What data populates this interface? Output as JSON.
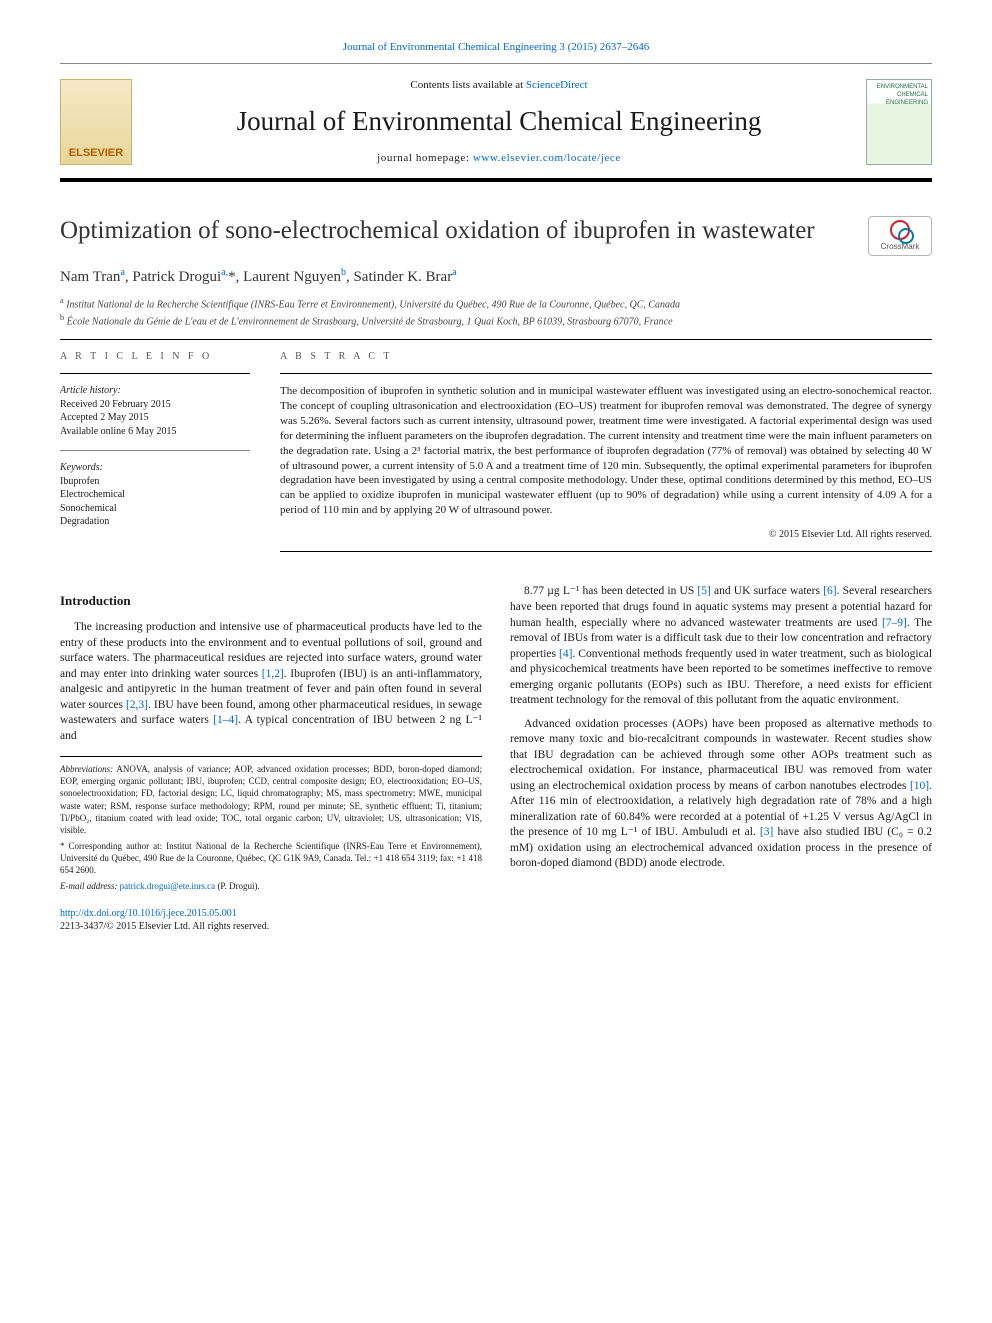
{
  "header": {
    "top_citation": "Journal of Environmental Chemical Engineering 3 (2015) 2637–2646",
    "contents_prefix": "Contents lists available at ",
    "contents_link": "ScienceDirect",
    "journal_name": "Journal of Environmental Chemical Engineering",
    "homepage_label": "journal homepage: ",
    "homepage_url": "www.elsevier.com/locate/jece",
    "elsevier_label": "ELSEVIER",
    "cover_text": "ENVIRONMENTAL\nCHEMICAL\nENGINEERING"
  },
  "crossmark_label": "CrossMark",
  "title": "Optimization of sono-electrochemical oxidation of ibuprofen in wastewater",
  "authors_html": "Nam Tran<sup>a</sup>, Patrick Drogui<sup>a,</sup>*, Laurent Nguyen<sup>b</sup>, Satinder K. Brar<sup>a</sup>",
  "affiliations": {
    "a": "Institut National de la Recherche Scientifique (INRS-Eau Terre et Environnement), Université du Québec, 490 Rue de la Couronne, Québec, QC, Canada",
    "b": "École Nationale du Génie de L'eau et de L'environnement de Strasbourg, Université de Strasbourg, 1 Quai Koch, BP 61039, Strasbourg 67070, France"
  },
  "article_info": {
    "heading": "A R T I C L E  I N F O",
    "history_label": "Article history:",
    "history": [
      "Received 20 February 2015",
      "Accepted 2 May 2015",
      "Available online 6 May 2015"
    ],
    "keywords_label": "Keywords:",
    "keywords": [
      "Ibuprofen",
      "Electrochemical",
      "Sonochemical",
      "Degradation"
    ]
  },
  "abstract": {
    "heading": "A B S T R A C T",
    "text": "The decomposition of ibuprofen in synthetic solution and in municipal wastewater effluent was investigated using an electro-sonochemical reactor. The concept of coupling ultrasonication and electrooxidation (EO–US) treatment for ibuprofen removal was demonstrated. The degree of synergy was 5.26%. Several factors such as current intensity, ultrasound power, treatment time were investigated. A factorial experimental design was used for determining the influent parameters on the ibuprofen degradation. The current intensity and treatment time were the main influent parameters on the degradation rate. Using a 2³ factorial matrix, the best performance of ibuprofen degradation (77% of removal) was obtained by selecting 40 W of ultrasound power, a current intensity of 5.0 A and a treatment time of 120 min. Subsequently, the optimal experimental parameters for ibuprofen degradation have been investigated by using a central composite methodology. Under these, optimal conditions determined by this method, EO–US can be applied to oxidize ibuprofen in municipal wastewater effluent (up to 90% of degradation) while using a current intensity of 4.09 A for a period of 110 min and by applying 20 W of ultrasound power.",
    "copyright": "© 2015 Elsevier Ltd. All rights reserved."
  },
  "body": {
    "intro_heading": "Introduction",
    "p1": "The increasing production and intensive use of pharmaceutical products have led to the entry of these products into the environment and to eventual pollutions of soil, ground and surface waters. The pharmaceutical residues are rejected into surface waters, ground water and may enter into drinking water sources [1,2]. Ibuprofen (IBU) is an anti-inflammatory, analgesic and antipyretic in the human treatment of fever and pain often found in several water sources [2,3]. IBU have been found, among other pharmaceutical residues, in sewage wastewaters and surface waters [1–4]. A typical concentration of IBU between 2 ng L⁻¹ and",
    "p2": "8.77 µg L⁻¹ has been detected in US [5] and UK surface waters [6]. Several researchers have been reported that drugs found in aquatic systems may present a potential hazard for human health, especially where no advanced wastewater treatments are used [7–9]. The removal of IBUs from water is a difficult task due to their low concentration and refractory properties [4]. Conventional methods frequently used in water treatment, such as biological and physicochemical treatments have been reported to be sometimes ineffective to remove emerging organic pollutants (EOPs) such as IBU. Therefore, a need exists for efficient treatment technology for the removal of this pollutant from the aquatic environment.",
    "p3": "Advanced oxidation processes (AOPs) have been proposed as alternative methods to remove many toxic and bio-recalcitrant compounds in wastewater. Recent studies show that IBU degradation can be achieved through some other AOPs treatment such as electrochemical oxidation. For instance, pharmaceutical IBU was removed from water using an electrochemical oxidation process by means of carbon nanotubes electrodes [10]. After 116 min of electrooxidation, a relatively high degradation rate of 78% and a high mineralization rate of 60.84% were recorded at a potential of +1.25 V versus Ag/AgCl in the presence of 10 mg L⁻¹ of IBU. Ambuludi et al. [3] have also studied IBU (C₀ = 0.2 mM) oxidation using an electrochemical advanced oxidation process in the presence of boron-doped diamond (BDD) anode electrode."
  },
  "footnotes": {
    "abbrev_label": "Abbreviations:",
    "abbrev": "ANOVA, analysis of variance; AOP, advanced oxidation processes; BDD, boron-doped diamond; EOP, emerging organic pollutant; IBU, ibuprofen; CCD, central composite design; EO, electrooxidation; EO–US, sonoelectrooxidation; FD, factorial design; LC, liquid chromatography; MS, mass spectrometry; MWE, municipal waste water; RSM, response surface methodology; RPM, round per minute; SE, synthetic effluent; Ti, titanium; Ti/PbO₂, titanium coated with lead oxide; TOC, total organic carbon; UV, ultraviolet; US, ultrasonication; VIS, visible.",
    "corr": "* Corresponding author at: Institut National de la Recherche Scientifique (INRS-Eau Terre et Environnement), Université du Québec, 490 Rue de la Couronne, Québec, QC G1K 9A9, Canada. Tel.: +1 418 654 3119; fax: +1 418 654 2600.",
    "email_label": "E-mail address: ",
    "email": "patrick.drogui@ete.inrs.ca",
    "email_suffix": " (P. Drogui)."
  },
  "doi": {
    "url": "http://dx.doi.org/10.1016/j.jece.2015.05.001",
    "issn_line": "2213-3437/© 2015 Elsevier Ltd. All rights reserved."
  },
  "colors": {
    "link": "#0066cc",
    "rule": "#000000",
    "elsevier_orange": "#b85c00"
  }
}
